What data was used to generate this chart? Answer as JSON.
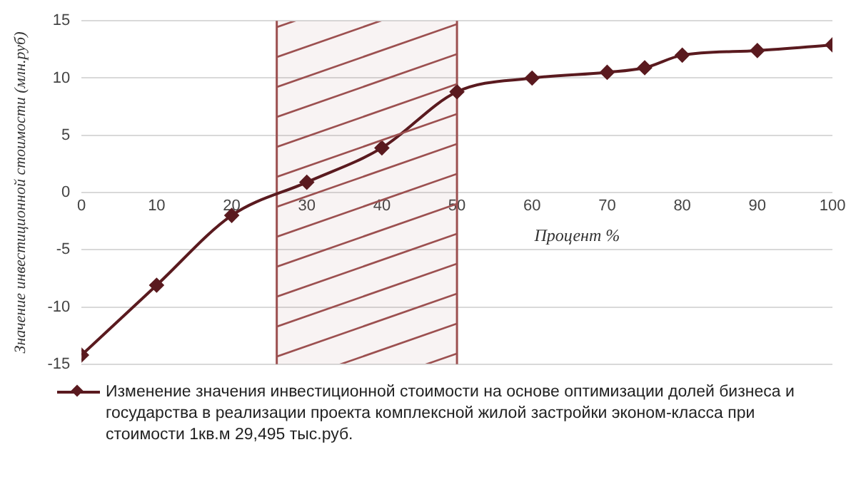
{
  "chart_data": {
    "type": "line",
    "xlabel": "Процент %",
    "ylabel": "Значение инвестиционной стоимости (млн.руб)",
    "x": [
      0,
      10,
      20,
      30,
      40,
      50,
      60,
      70,
      75,
      80,
      90,
      100
    ],
    "series": [
      {
        "name": "Изменение значения инвестиционной стоимости на основе оптимизации долей бизнеса и государства в реализации проекта комплексной жилой застройки эконом-класса при стоимости 1кв.м 29,495 тыс.руб.",
        "color": "#5a1a1f",
        "values": [
          -14.2,
          -8.1,
          -2,
          0.9,
          3.9,
          8.8,
          10,
          10.5,
          10.9,
          12,
          12.4,
          12.9
        ]
      }
    ],
    "xlim": [
      0,
      100
    ],
    "xticks": [
      0,
      10,
      20,
      30,
      40,
      50,
      60,
      70,
      80,
      90,
      100
    ],
    "ylim": [
      -15,
      15
    ],
    "yticks": [
      -15,
      -10,
      -5,
      0,
      5,
      10,
      15
    ],
    "bands": [
      {
        "axis": "x",
        "from": 26,
        "to": 50,
        "color": "#9c5050"
      }
    ],
    "ref_lines": [
      {
        "axis": "x",
        "value": 26,
        "color": "#9c5050",
        "line_style": "solid"
      },
      {
        "axis": "x",
        "value": 50,
        "color": "#9c5050",
        "line_style": "solid"
      }
    ],
    "grid": "y",
    "legend": "bottom",
    "marker": "diamond",
    "line_style": "solid"
  }
}
